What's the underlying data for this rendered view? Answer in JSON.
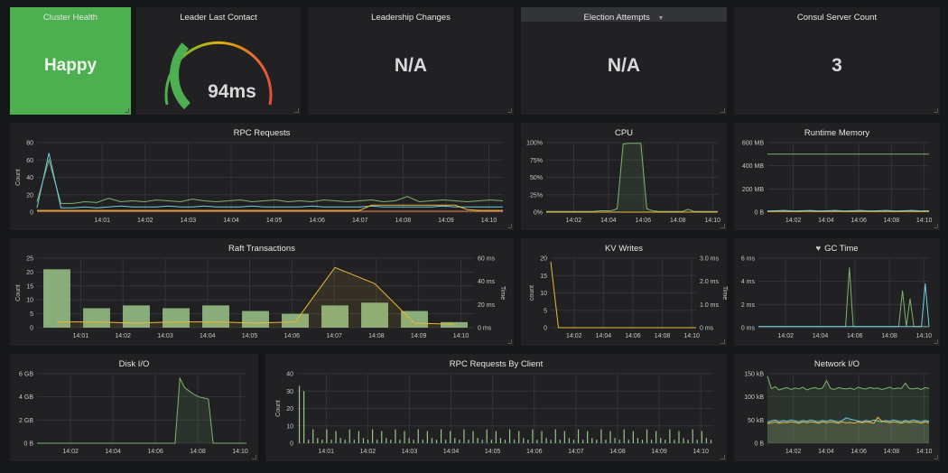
{
  "stats": {
    "cluster_health": {
      "title": "Cluster Health",
      "value": "Happy",
      "color": "#4caf50"
    },
    "leader_last_contact": {
      "title": "Leader Last Contact",
      "value": "94ms",
      "gauge_fraction": 0.32
    },
    "leadership_changes": {
      "title": "Leadership Changes",
      "value": "N/A"
    },
    "election_attempts": {
      "title": "Election Attempts",
      "value": "N/A",
      "menu_icon": "caret-down-icon"
    },
    "consul_server_count": {
      "title": "Consul Server Count",
      "value": "3"
    }
  },
  "panels": {
    "rpc_requests": {
      "title": "RPC Requests"
    },
    "cpu": {
      "title": "CPU"
    },
    "runtime_memory": {
      "title": "Runtime Memory"
    },
    "raft_transactions": {
      "title": "Raft Transactions"
    },
    "kv_writes": {
      "title": "KV Writes"
    },
    "gc_time": {
      "title": "GC Time",
      "icon": "heart-icon"
    },
    "disk_io": {
      "title": "Disk I/O"
    },
    "rpc_by_client": {
      "title": "RPC Requests By Client"
    },
    "network_io": {
      "title": "Network I/O"
    }
  },
  "chart_data": [
    {
      "id": "rpc_requests",
      "type": "line",
      "ylabel": "Count",
      "ylim": [
        0,
        80
      ],
      "yticks": [
        "80",
        "60",
        "40",
        "20",
        "0"
      ],
      "xticks": [
        "14:01",
        "14:02",
        "14:03",
        "14:04",
        "14:05",
        "14:06",
        "14:07",
        "14:08",
        "14:09",
        "14:10"
      ],
      "series": [
        {
          "color": "#7eb26d",
          "values": [
            12,
            60,
            10,
            10,
            12,
            11,
            16,
            12,
            13,
            12,
            14,
            13,
            12,
            15,
            13,
            12,
            13,
            14,
            12,
            13,
            14,
            12,
            13,
            12,
            14,
            13,
            12,
            13,
            14,
            12,
            13,
            18,
            12,
            13,
            14,
            13,
            12,
            13,
            14,
            13
          ]
        },
        {
          "color": "#6ed0e0",
          "values": [
            5,
            68,
            5,
            5,
            6,
            5,
            6,
            7,
            6,
            6,
            6,
            7,
            6,
            6,
            7,
            6,
            6,
            6,
            7,
            6,
            6,
            6,
            6,
            7,
            6,
            6,
            6,
            6,
            7,
            6,
            6,
            6,
            6,
            6,
            7,
            6,
            6,
            6,
            6,
            6
          ]
        },
        {
          "color": "#eab839",
          "values": [
            2,
            2,
            2,
            2,
            2,
            2,
            2,
            2,
            2,
            2,
            2,
            2,
            2,
            2,
            2,
            2,
            2,
            2,
            2,
            2,
            2,
            2,
            2,
            2,
            2,
            2,
            2,
            2,
            8,
            8,
            8,
            8,
            8,
            8,
            8,
            8,
            3,
            2,
            2,
            2
          ]
        },
        {
          "color": "#ef843c",
          "values": [
            1,
            1,
            1,
            1,
            1,
            1,
            1,
            1,
            1,
            1,
            1,
            1,
            1,
            1,
            1,
            1,
            1,
            1,
            1,
            1,
            1,
            1,
            1,
            1,
            1,
            1,
            1,
            1,
            1,
            1,
            1,
            1,
            1,
            1,
            1,
            1,
            1,
            1,
            1,
            1
          ]
        }
      ]
    },
    {
      "id": "cpu",
      "type": "area",
      "ylim": [
        0,
        100
      ],
      "yticks": [
        "100%",
        "75%",
        "50%",
        "25%",
        "0%"
      ],
      "xticks": [
        "14:02",
        "14:04",
        "14:06",
        "14:08",
        "14:10"
      ],
      "series": [
        {
          "color": "#7eb26d",
          "values": [
            1,
            1,
            1,
            1,
            1,
            1,
            1,
            1,
            1,
            2,
            2,
            2,
            5,
            98,
            99,
            99,
            99,
            5,
            2,
            1,
            1,
            1,
            1,
            1,
            4,
            1,
            1,
            1,
            1,
            1
          ]
        },
        {
          "color": "#eab839",
          "values": [
            0,
            0,
            0,
            0,
            0,
            0,
            0,
            0,
            0,
            0,
            0,
            0,
            0,
            0,
            0,
            0,
            0,
            0,
            0,
            0,
            0,
            0,
            0,
            0,
            0,
            0,
            0,
            0,
            0,
            0
          ]
        }
      ]
    },
    {
      "id": "runtime_memory",
      "type": "line",
      "ylim": [
        0,
        600
      ],
      "yticks": [
        "600 MB",
        "400 MB",
        "200 MB",
        "0 B"
      ],
      "xticks": [
        "14:02",
        "14:04",
        "14:06",
        "14:08",
        "14:10"
      ],
      "series": [
        {
          "color": "#7eb26d",
          "values": [
            500,
            500,
            500,
            500,
            500,
            500,
            500,
            500,
            500,
            500,
            500,
            500,
            500,
            500,
            500,
            500,
            500,
            500,
            500,
            500
          ]
        },
        {
          "color": "#6ed0e0",
          "values": [
            10,
            12,
            15,
            10,
            12,
            15,
            10,
            12,
            15,
            10,
            12,
            15,
            10,
            12,
            15,
            10,
            12,
            15,
            10,
            12
          ]
        },
        {
          "color": "#eab839",
          "values": [
            5,
            6,
            7,
            5,
            6,
            7,
            5,
            6,
            7,
            5,
            6,
            7,
            5,
            6,
            7,
            5,
            6,
            7,
            5,
            6
          ]
        }
      ]
    },
    {
      "id": "raft_transactions",
      "type": "bar",
      "ylabel": "Count",
      "y2label": "Time",
      "ylim": [
        0,
        25
      ],
      "y2lim": [
        0,
        60
      ],
      "yticks": [
        "25",
        "20",
        "15",
        "10",
        "5",
        "0"
      ],
      "y2ticks": [
        "60 ms",
        "40 ms",
        "20 ms",
        "0 ms"
      ],
      "xticks": [
        "14:01",
        "14:02",
        "14:03",
        "14:04",
        "14:05",
        "14:06",
        "14:07",
        "14:08",
        "14:09",
        "14:10"
      ],
      "values": [
        21,
        7,
        8,
        7,
        8,
        6,
        5,
        8,
        9,
        6,
        2
      ],
      "time_ms": [
        5,
        5,
        4,
        5,
        5,
        4,
        5,
        52,
        38,
        4,
        3
      ]
    },
    {
      "id": "kv_writes",
      "type": "line",
      "ylabel": "count",
      "y2label": "Time",
      "ylim": [
        0,
        20
      ],
      "y2lim": [
        0,
        3
      ],
      "yticks": [
        "20",
        "15",
        "10",
        "5",
        "0"
      ],
      "y2ticks": [
        "3.0 ms",
        "2.0 ms",
        "1.0 ms",
        "0 ms"
      ],
      "xticks": [
        "14:02",
        "14:04",
        "14:06",
        "14:08",
        "14:10"
      ],
      "series": [
        {
          "color": "#eab839",
          "values": [
            19,
            0,
            0,
            0,
            0,
            0,
            0,
            0,
            0,
            0,
            0,
            0,
            0,
            0,
            0,
            0,
            0,
            0,
            0,
            0
          ]
        }
      ]
    },
    {
      "id": "gc_time",
      "type": "line",
      "ylim": [
        0,
        6
      ],
      "yticks": [
        "6 ms",
        "4 ms",
        "2 ms",
        "0 ms"
      ],
      "xticks": [
        "14:02",
        "14:04",
        "14:06",
        "14:08",
        "14:10"
      ],
      "series": [
        {
          "color": "#7eb26d",
          "values": [
            0.1,
            0.1,
            0.1,
            0.1,
            0.1,
            0.1,
            0.1,
            0.1,
            0.1,
            0.1,
            0.1,
            0.1,
            0.1,
            0.1,
            0.1,
            0.1,
            0.1,
            0.1,
            0.1,
            0.1,
            0.1,
            0.1,
            0.1,
            0.1,
            5.2,
            0.1,
            0.1,
            0.1,
            0.1,
            0.1,
            0.1,
            0.1,
            0.1,
            0.1,
            0.1,
            0.1,
            0.1,
            0.1,
            3.2,
            0.1,
            2.5,
            0.1,
            0.1,
            0.1,
            0.1,
            0.1
          ]
        },
        {
          "color": "#6ed0e0",
          "values": [
            0.1,
            0.1,
            0.1,
            0.1,
            0.1,
            0.1,
            0.1,
            0.1,
            0.1,
            0.1,
            0.1,
            0.1,
            0.1,
            0.1,
            0.1,
            0.1,
            0.1,
            0.1,
            0.1,
            0.1,
            0.1,
            0.1,
            0.1,
            0.1,
            0.1,
            0.1,
            0.1,
            0.1,
            0.1,
            0.1,
            0.1,
            0.1,
            0.1,
            0.1,
            0.1,
            0.1,
            0.1,
            0.1,
            0.1,
            0.1,
            0.1,
            0.1,
            0.1,
            0.1,
            3.8,
            0.1
          ]
        }
      ]
    },
    {
      "id": "disk_io",
      "type": "area",
      "ylim": [
        0,
        6
      ],
      "yticks": [
        "6 GB",
        "4 GB",
        "2 GB",
        "0 B"
      ],
      "xticks": [
        "14:02",
        "14:04",
        "14:06",
        "14:08",
        "14:10"
      ],
      "series": [
        {
          "color": "#7eb26d",
          "values": [
            0,
            0,
            0,
            0,
            0,
            0,
            0,
            0,
            0,
            0,
            0,
            0,
            0,
            0,
            0,
            0,
            0,
            0,
            0,
            0,
            0,
            0,
            0,
            0,
            0,
            0,
            0,
            0,
            0,
            0,
            5.6,
            4.8,
            4.5,
            4.2,
            4.0,
            3.9,
            3.8,
            0,
            0,
            0,
            0,
            0,
            0,
            0,
            0
          ]
        }
      ]
    },
    {
      "id": "rpc_by_client",
      "type": "bar",
      "ylabel": "Count",
      "ylim": [
        0,
        40
      ],
      "yticks": [
        "40",
        "30",
        "20",
        "10",
        "0"
      ],
      "xticks": [
        "14:01",
        "14:02",
        "14:03",
        "14:04",
        "14:05",
        "14:06",
        "14:07",
        "14:08",
        "14:09",
        "14:10"
      ],
      "values": [
        33,
        30,
        2,
        8,
        3,
        2,
        8,
        2,
        7,
        3,
        2,
        8,
        2,
        7,
        3,
        2,
        8,
        2,
        7,
        3,
        2,
        8,
        2,
        7,
        3,
        2,
        8,
        2,
        7,
        3,
        2,
        8,
        2,
        7,
        3,
        2,
        8,
        2,
        7,
        3,
        2,
        8,
        2,
        7,
        3,
        2,
        8,
        2,
        7,
        3,
        2,
        8,
        2,
        7,
        3,
        2,
        8,
        2,
        7,
        3,
        2,
        8,
        2,
        7,
        3,
        2,
        8,
        2,
        7,
        3,
        2,
        8,
        2,
        7,
        3,
        2,
        8,
        2,
        7,
        3,
        2,
        8,
        2,
        7,
        3,
        2,
        8,
        2,
        7,
        3,
        2
      ]
    },
    {
      "id": "network_io",
      "type": "area",
      "ylim": [
        0,
        150
      ],
      "yticks": [
        "150 kB",
        "100 kB",
        "50 kB",
        "0 B"
      ],
      "xticks": [
        "14:02",
        "14:04",
        "14:06",
        "14:08",
        "14:10"
      ],
      "series": [
        {
          "color": "#7eb26d",
          "values": [
            145,
            118,
            122,
            115,
            118,
            120,
            116,
            119,
            117,
            121,
            115,
            118,
            120,
            117,
            119,
            135,
            118,
            116,
            120,
            118,
            117,
            119,
            116,
            121,
            118,
            117,
            120,
            118,
            119,
            116,
            118,
            121,
            117,
            119,
            118,
            130,
            118,
            117,
            119,
            116,
            120,
            118
          ]
        },
        {
          "color": "#6ed0e0",
          "values": [
            45,
            48,
            50,
            46,
            49,
            47,
            50,
            48,
            46,
            49,
            47,
            50,
            48,
            46,
            49,
            47,
            50,
            48,
            46,
            49,
            55,
            52,
            50,
            48,
            46,
            49,
            47,
            50,
            48,
            46,
            49,
            47,
            50,
            48,
            46,
            49,
            47,
            50,
            48,
            46,
            49,
            47
          ]
        },
        {
          "color": "#eab839",
          "values": [
            42,
            44,
            46,
            43,
            45,
            44,
            46,
            45,
            43,
            46,
            44,
            46,
            45,
            43,
            46,
            44,
            46,
            45,
            43,
            46,
            44,
            45,
            43,
            46,
            44,
            46,
            45,
            43,
            56,
            48,
            46,
            44,
            46,
            45,
            43,
            46,
            44,
            46,
            45,
            43,
            46,
            44
          ]
        }
      ]
    }
  ]
}
